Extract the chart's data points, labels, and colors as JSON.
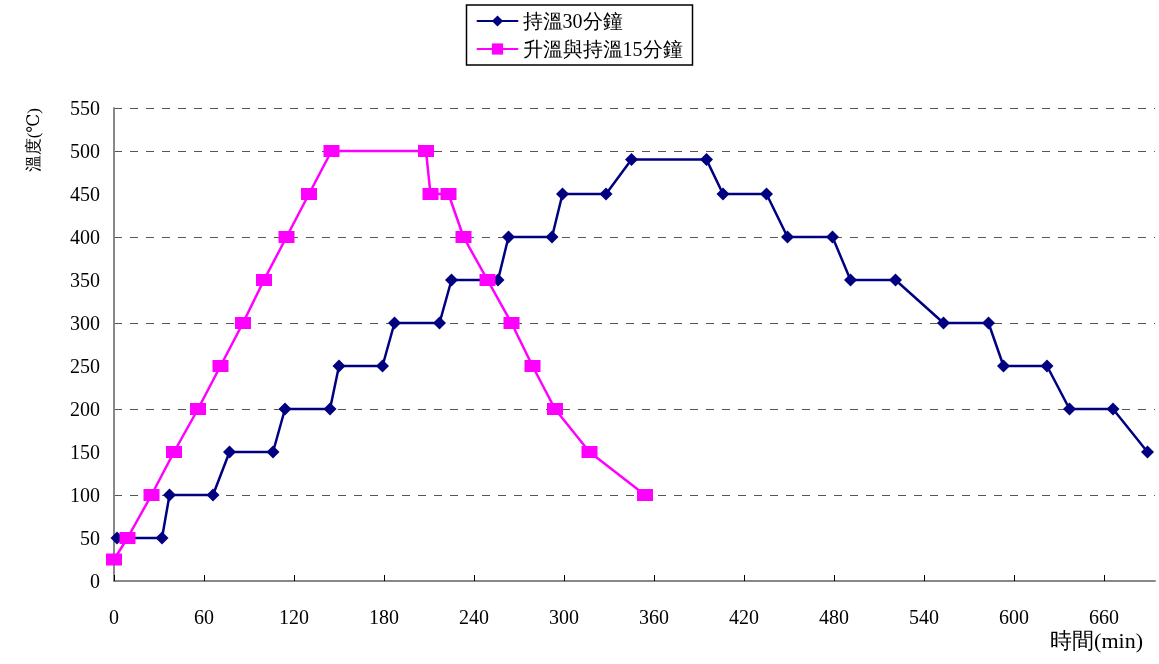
{
  "chart_data": {
    "type": "line",
    "xlabel": "時間(min)",
    "ylabel": "溫度(℃)",
    "xlim": [
      0,
      694
    ],
    "xticks": [
      0,
      60,
      120,
      180,
      240,
      300,
      360,
      420,
      480,
      540,
      600,
      660
    ],
    "ylim": [
      0,
      550
    ],
    "yticks": [
      0,
      50,
      100,
      150,
      200,
      250,
      300,
      350,
      400,
      450,
      500,
      550
    ],
    "grid": "y",
    "legend": "top",
    "line_style": "solid",
    "series": [
      {
        "name": "持溫30分鐘",
        "color": "#000080",
        "marker": "diamond",
        "x": [
          2,
          32,
          37,
          66,
          77,
          106,
          114,
          144,
          150,
          179,
          187,
          217,
          225,
          256,
          263,
          292,
          299,
          328,
          345,
          395,
          406,
          435,
          449,
          479,
          491,
          521,
          553,
          583,
          593,
          622,
          637,
          666,
          689
        ],
        "values": [
          50,
          50,
          100,
          100,
          150,
          150,
          200,
          200,
          250,
          250,
          300,
          300,
          350,
          350,
          400,
          400,
          450,
          450,
          490,
          490,
          450,
          450,
          400,
          400,
          350,
          350,
          300,
          300,
          250,
          250,
          200,
          200,
          150
        ]
      },
      {
        "name": "升溫與持溫15分鐘",
        "color": "#ff00ff",
        "marker": "square",
        "x": [
          0,
          9,
          25,
          40,
          56,
          71,
          86,
          100,
          115,
          130,
          145,
          208,
          211,
          223,
          233,
          249,
          265,
          279,
          294,
          317,
          354
        ],
        "values": [
          25,
          50,
          100,
          150,
          200,
          250,
          300,
          350,
          400,
          450,
          500,
          500,
          450,
          450,
          400,
          350,
          300,
          250,
          200,
          150,
          100
        ]
      }
    ]
  }
}
